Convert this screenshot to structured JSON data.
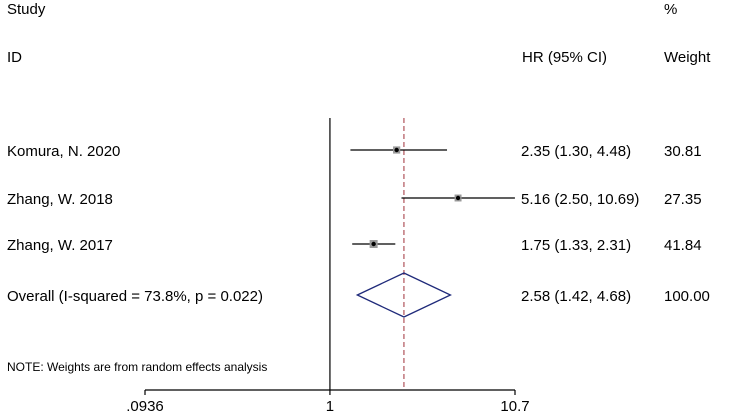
{
  "header": {
    "study_label": "Study",
    "id_label": "ID",
    "hr_label": "HR (95% CI)",
    "pct_label": "%",
    "weight_label": "Weight"
  },
  "note": "NOTE: Weights are from random effects analysis",
  "chart_data": {
    "type": "forest",
    "scale": "log",
    "xlim": [
      0.0936,
      10.7
    ],
    "x_ticks": [
      {
        "value": 0.0936,
        "label": ".0936"
      },
      {
        "value": 1,
        "label": "1"
      },
      {
        "value": 10.7,
        "label": "10.7"
      }
    ],
    "null_line": 1,
    "pooled_line": 2.58,
    "studies": [
      {
        "id": "Komura, N. 2020",
        "hr": 2.35,
        "lower": 1.3,
        "upper": 4.48,
        "ci_text": "2.35 (1.30, 4.48)",
        "weight": 30.81,
        "weight_text": "30.81"
      },
      {
        "id": "Zhang, W. 2018",
        "hr": 5.16,
        "lower": 2.5,
        "upper": 10.69,
        "ci_text": "5.16 (2.50, 10.69)",
        "weight": 27.35,
        "weight_text": "27.35"
      },
      {
        "id": "Zhang, W. 2017",
        "hr": 1.75,
        "lower": 1.33,
        "upper": 2.31,
        "ci_text": "1.75 (1.33, 2.31)",
        "weight": 41.84,
        "weight_text": "41.84"
      }
    ],
    "overall": {
      "id": "Overall  (I-squared = 73.8%, p = 0.022)",
      "hr": 2.58,
      "lower": 1.42,
      "upper": 4.68,
      "ci_text": "2.58 (1.42, 4.68)",
      "weight_text": "100.00"
    },
    "colors": {
      "diamond": "#1f2a7a",
      "pooled_line": "#a0303a",
      "axis": "#000000",
      "ci": "#000000"
    }
  }
}
